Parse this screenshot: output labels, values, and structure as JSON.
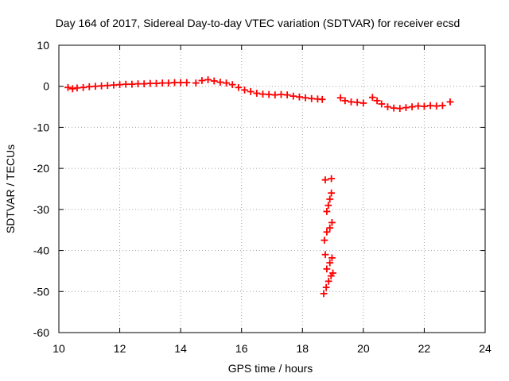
{
  "chart_data": {
    "type": "scatter",
    "title": "Day 164 of 2017, Sidereal Day-to-day VTEC variation (SDTVAR) for receiver ecsd",
    "xlabel": "GPS time / hours",
    "ylabel": "SDTVAR / TECUs",
    "xlim": [
      10,
      24
    ],
    "ylim": [
      -60,
      10
    ],
    "xticks": [
      10,
      12,
      14,
      16,
      18,
      20,
      22,
      24
    ],
    "yticks": [
      10,
      0,
      -10,
      -20,
      -30,
      -40,
      -50,
      -60
    ],
    "xtick_labels": [
      "10",
      "12",
      "14",
      "16",
      "18",
      "20",
      "22",
      "24"
    ],
    "ytick_labels": [
      "10",
      "0",
      "-10",
      "-20",
      "-30",
      "-40",
      "-50",
      "-60"
    ],
    "grid": true,
    "marker": "+",
    "series": [
      {
        "name": "SDTVAR",
        "color": "#ff0000",
        "points": [
          [
            10.3,
            -0.3
          ],
          [
            10.45,
            -0.6
          ],
          [
            10.6,
            -0.4
          ],
          [
            10.8,
            -0.3
          ],
          [
            11.0,
            -0.1
          ],
          [
            11.2,
            0.0
          ],
          [
            11.4,
            0.1
          ],
          [
            11.6,
            0.2
          ],
          [
            11.8,
            0.3
          ],
          [
            12.0,
            0.4
          ],
          [
            12.2,
            0.5
          ],
          [
            12.4,
            0.5
          ],
          [
            12.6,
            0.6
          ],
          [
            12.8,
            0.6
          ],
          [
            13.0,
            0.7
          ],
          [
            13.2,
            0.7
          ],
          [
            13.4,
            0.8
          ],
          [
            13.6,
            0.8
          ],
          [
            13.8,
            0.9
          ],
          [
            14.0,
            0.9
          ],
          [
            14.2,
            0.9
          ],
          [
            14.5,
            0.8
          ],
          [
            14.7,
            1.4
          ],
          [
            14.9,
            1.6
          ],
          [
            15.1,
            1.3
          ],
          [
            15.3,
            1.0
          ],
          [
            15.5,
            0.8
          ],
          [
            15.7,
            0.4
          ],
          [
            15.9,
            -0.3
          ],
          [
            16.1,
            -0.9
          ],
          [
            16.3,
            -1.3
          ],
          [
            16.5,
            -1.7
          ],
          [
            16.7,
            -1.9
          ],
          [
            16.9,
            -2.0
          ],
          [
            17.1,
            -2.1
          ],
          [
            17.3,
            -2.0
          ],
          [
            17.5,
            -2.1
          ],
          [
            17.7,
            -2.4
          ],
          [
            17.9,
            -2.6
          ],
          [
            18.1,
            -2.8
          ],
          [
            18.3,
            -3.0
          ],
          [
            18.5,
            -3.1
          ],
          [
            18.65,
            -3.2
          ],
          [
            18.75,
            -22.8
          ],
          [
            18.95,
            -22.5
          ],
          [
            18.8,
            -30.5
          ],
          [
            18.85,
            -29.0
          ],
          [
            18.9,
            -27.5
          ],
          [
            18.95,
            -26.0
          ],
          [
            18.72,
            -37.5
          ],
          [
            18.8,
            -35.5
          ],
          [
            18.9,
            -34.5
          ],
          [
            18.97,
            -33.2
          ],
          [
            18.75,
            -41.0
          ],
          [
            18.8,
            -44.5
          ],
          [
            18.9,
            -43.0
          ],
          [
            18.97,
            -41.8
          ],
          [
            18.7,
            -50.5
          ],
          [
            18.78,
            -49.0
          ],
          [
            18.86,
            -47.5
          ],
          [
            18.94,
            -46.2
          ],
          [
            19.0,
            -45.5
          ],
          [
            19.25,
            -2.8
          ],
          [
            19.4,
            -3.5
          ],
          [
            19.6,
            -3.8
          ],
          [
            19.8,
            -3.9
          ],
          [
            20.0,
            -4.1
          ],
          [
            20.3,
            -2.7
          ],
          [
            20.45,
            -3.5
          ],
          [
            20.6,
            -4.3
          ],
          [
            20.8,
            -5.0
          ],
          [
            21.0,
            -5.3
          ],
          [
            21.2,
            -5.4
          ],
          [
            21.4,
            -5.2
          ],
          [
            21.6,
            -5.0
          ],
          [
            21.8,
            -4.8
          ],
          [
            22.0,
            -4.9
          ],
          [
            22.2,
            -4.7
          ],
          [
            22.4,
            -4.8
          ],
          [
            22.6,
            -4.7
          ],
          [
            22.85,
            -3.8
          ]
        ]
      }
    ]
  }
}
